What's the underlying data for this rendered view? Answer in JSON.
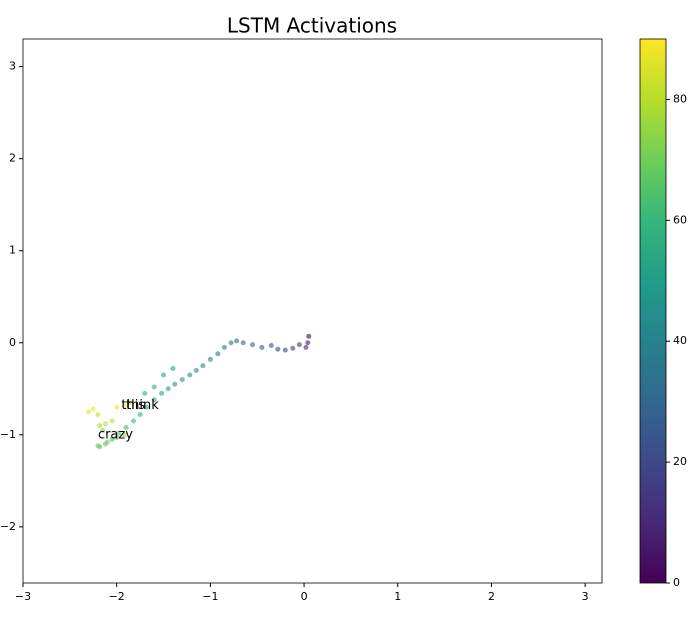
{
  "chart_data": {
    "type": "scatter",
    "title": "LSTM Activations",
    "x": [
      0.05,
      0.04,
      0.02,
      -0.05,
      -0.12,
      -0.2,
      -0.28,
      -0.35,
      -0.45,
      -0.55,
      -0.65,
      -0.72,
      -0.78,
      -0.85,
      -0.92,
      -1.0,
      -1.08,
      -1.15,
      -1.22,
      -1.3,
      -1.38,
      -1.45,
      -1.52,
      -1.6,
      -1.68,
      -1.75,
      -1.82,
      -1.9,
      -1.98,
      -2.05,
      -2.12,
      -2.18,
      -2.2,
      -2.1,
      -2.0,
      -1.92,
      -2.15,
      -2.18,
      -2.12,
      -2.05,
      -2.2,
      -2.3,
      -2.25,
      -2.0,
      -1.92,
      -1.85,
      -1.6,
      -1.4,
      -1.7,
      -1.5
    ],
    "values": [
      0.07,
      0.0,
      -0.05,
      -0.02,
      -0.06,
      -0.08,
      -0.07,
      -0.03,
      -0.05,
      -0.02,
      0.0,
      0.02,
      0.0,
      -0.05,
      -0.12,
      -0.18,
      -0.25,
      -0.3,
      -0.35,
      -0.4,
      -0.45,
      -0.5,
      -0.55,
      -0.62,
      -0.7,
      -0.78,
      -0.85,
      -0.92,
      -0.98,
      -1.05,
      -1.1,
      -1.13,
      -1.12,
      -1.08,
      -1.03,
      -1.0,
      -0.95,
      -0.9,
      -0.88,
      -0.85,
      -0.78,
      -0.75,
      -0.72,
      -0.7,
      -0.68,
      -0.65,
      -0.48,
      -0.28,
      -0.55,
      -0.35
    ],
    "color_values": [
      0,
      4,
      8,
      12,
      15,
      18,
      20,
      22,
      25,
      27,
      29,
      31,
      33,
      35,
      37,
      39,
      41,
      43,
      45,
      46,
      48,
      50,
      52,
      54,
      56,
      58,
      60,
      62,
      64,
      65,
      66,
      67,
      68,
      70,
      72,
      74,
      76,
      78,
      80,
      82,
      84,
      86,
      87,
      88,
      89,
      90,
      56,
      50,
      58,
      52
    ],
    "colormap": "viridis",
    "clim": [
      0,
      90
    ],
    "cticks": [
      0,
      20,
      40,
      60,
      80
    ],
    "annotations": [
      {
        "text": "this",
        "x": -1.95,
        "y": -0.68
      },
      {
        "text": "think",
        "x": -1.9,
        "y": -0.68
      },
      {
        "text": "crazy",
        "x": -2.2,
        "y": -1.0
      }
    ],
    "xlim": [
      -3,
      3.18
    ],
    "ylim": [
      -2.61,
      3.3
    ],
    "xticks": [
      {
        "value": -3,
        "label": "−3"
      },
      {
        "value": -2,
        "label": "−2"
      },
      {
        "value": -1,
        "label": "−1"
      },
      0,
      1,
      2,
      3
    ],
    "yticks": [
      {
        "value": -2,
        "label": "−2"
      },
      {
        "value": -1,
        "label": "−1"
      },
      0,
      1,
      2,
      3
    ]
  }
}
